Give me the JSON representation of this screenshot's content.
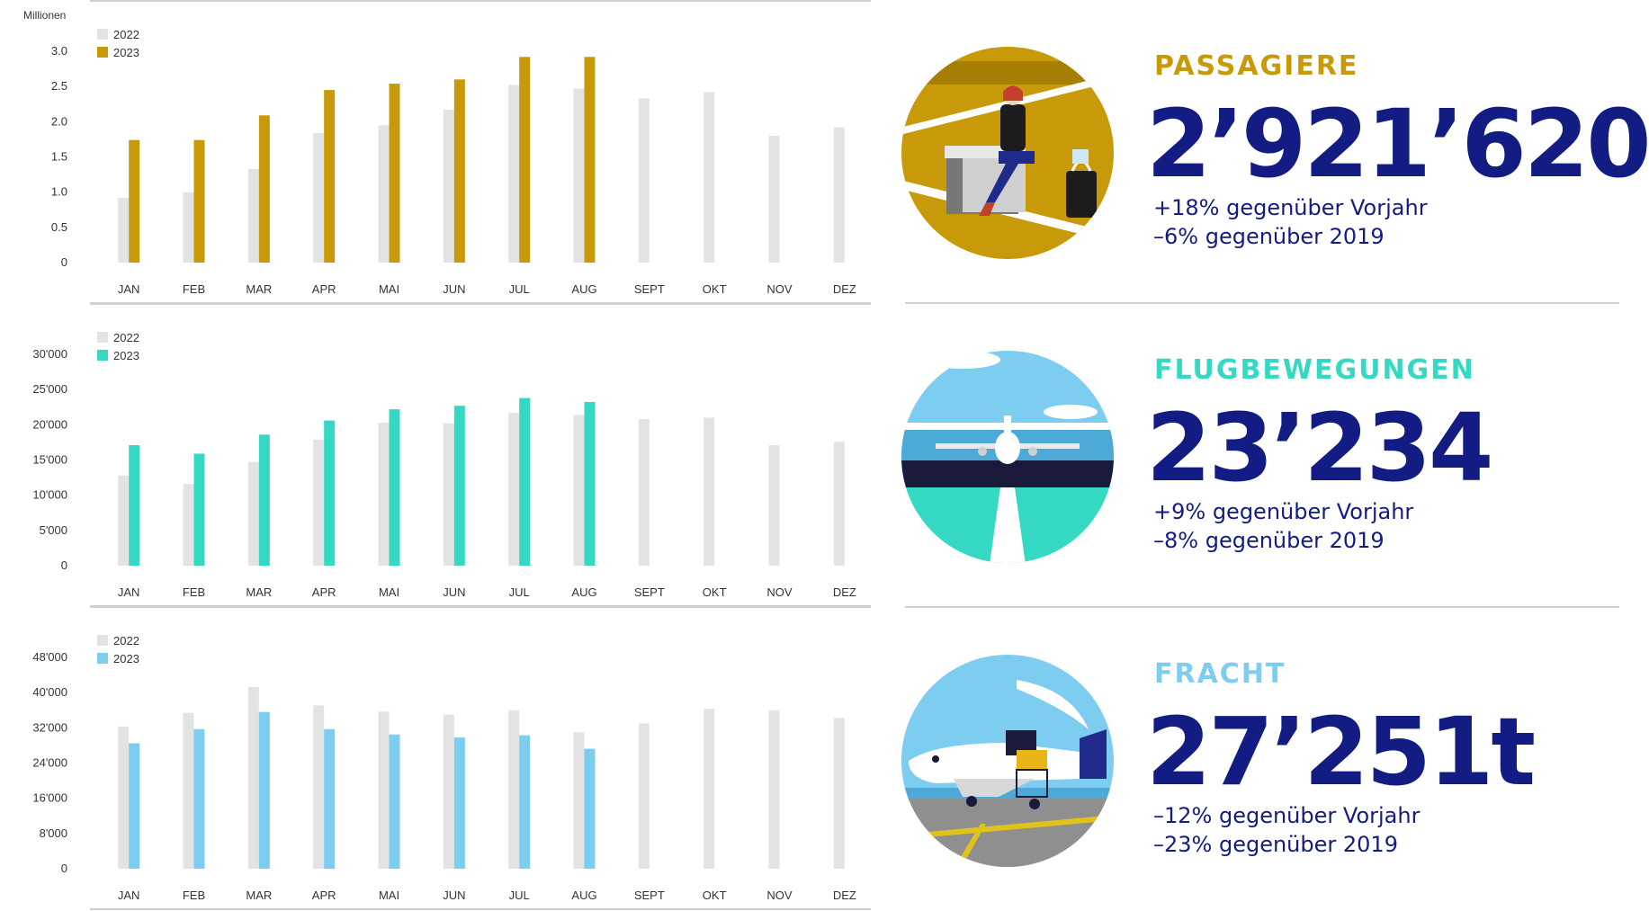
{
  "chart_data": [
    {
      "type": "bar",
      "title": "",
      "ylabel": "Millionen",
      "categories": [
        "JAN",
        "FEB",
        "MAR",
        "APR",
        "MAI",
        "JUN",
        "JUL",
        "AUG",
        "SEPT",
        "OKT",
        "NOV",
        "DEZ"
      ],
      "yticks": [
        "0",
        "0.5",
        "1.0",
        "1.5",
        "2.0",
        "2.5",
        "3.0"
      ],
      "ylim": [
        0,
        3.0
      ],
      "legend_position": "top-left",
      "grid": false,
      "series": [
        {
          "name": "2022",
          "color": "#e3e3e3",
          "values": [
            0.92,
            1.0,
            1.33,
            1.84,
            1.95,
            2.17,
            2.52,
            2.47,
            2.33,
            2.42,
            1.8,
            1.92
          ]
        },
        {
          "name": "2023",
          "color": "#c89a0a",
          "values": [
            1.74,
            1.74,
            2.09,
            2.45,
            2.54,
            2.6,
            2.92,
            2.92,
            null,
            null,
            null,
            null
          ]
        }
      ]
    },
    {
      "type": "bar",
      "title": "",
      "ylabel": "",
      "categories": [
        "JAN",
        "FEB",
        "MAR",
        "APR",
        "MAI",
        "JUN",
        "JUL",
        "AUG",
        "SEPT",
        "OKT",
        "NOV",
        "DEZ"
      ],
      "yticks": [
        "0",
        "5'000",
        "10'000",
        "15'000",
        "20'000",
        "25'000",
        "30'000"
      ],
      "ylim": [
        0,
        30000
      ],
      "legend_position": "top-left",
      "grid": false,
      "series": [
        {
          "name": "2022",
          "color": "#e3e3e3",
          "values": [
            12800,
            11600,
            14700,
            17900,
            20300,
            20200,
            21700,
            21400,
            20800,
            21000,
            17100,
            17600
          ]
        },
        {
          "name": "2023",
          "color": "#35d9c3",
          "values": [
            17100,
            15900,
            18600,
            20600,
            22200,
            22700,
            23800,
            23234,
            null,
            null,
            null,
            null
          ]
        }
      ]
    },
    {
      "type": "bar",
      "title": "",
      "ylabel": "",
      "categories": [
        "JAN",
        "FEB",
        "MAR",
        "APR",
        "MAI",
        "JUN",
        "JUL",
        "AUG",
        "SEPT",
        "OKT",
        "NOV",
        "DEZ"
      ],
      "yticks": [
        "0",
        "8'000",
        "16'000",
        "24'000",
        "32'000",
        "40'000",
        "48'000"
      ],
      "ylim": [
        0,
        48000
      ],
      "legend_position": "top-left",
      "grid": false,
      "series": [
        {
          "name": "2022",
          "color": "#e3e3e3",
          "values": [
            32300,
            35400,
            41300,
            37100,
            35700,
            35000,
            36000,
            31000,
            33000,
            36300,
            36000,
            34200
          ]
        },
        {
          "name": "2023",
          "color": "#7dcdf0",
          "values": [
            28500,
            31700,
            35600,
            31700,
            30500,
            29800,
            30300,
            27251,
            null,
            null,
            null,
            null
          ]
        }
      ]
    }
  ],
  "kpis": [
    {
      "title": "PASSAGIERE",
      "title_color": "#c89a0a",
      "value": "2’921’620",
      "delta_prev": "+18% gegenüber Vorjahr",
      "delta_2019": "–6% gegenüber 2019",
      "illustration": "passenger-lounge-illustration"
    },
    {
      "title": "FLUGBEWEGUNGEN",
      "title_color": "#35d9c3",
      "value": "23’234",
      "delta_prev": "+9% gegenüber Vorjahr",
      "delta_2019": "–8% gegenüber 2019",
      "illustration": "runway-airplane-illustration"
    },
    {
      "title": "FRACHT",
      "title_color": "#7dcdf0",
      "value": "27’251t",
      "delta_prev": "–12% gegenüber Vorjahr",
      "delta_2019": "–23% gegenüber 2019",
      "illustration": "cargo-plane-illustration"
    }
  ]
}
